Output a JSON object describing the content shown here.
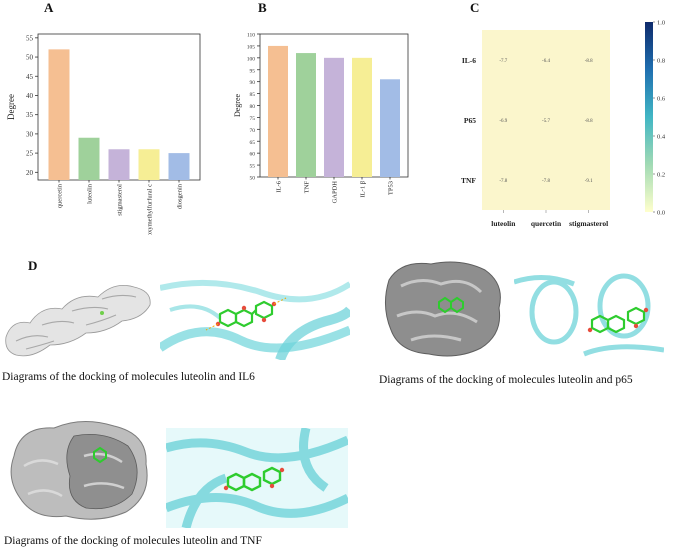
{
  "panels": {
    "a": "A",
    "b": "B",
    "c": "C",
    "d": "D"
  },
  "chart_data": [
    {
      "type": "bar",
      "panel": "A",
      "ylabel": "Degree",
      "categories": [
        "quercetin",
        "luteolin",
        "stigmasterol",
        "5-hydroxymethylfurfural c",
        "diosgenin"
      ],
      "values": [
        52,
        29,
        26,
        26,
        25
      ],
      "ylim": [
        18,
        56
      ],
      "yticks": [
        20,
        25,
        30,
        35,
        40,
        45,
        50,
        55
      ],
      "colors": [
        "#f5bf92",
        "#9fd19b",
        "#c5b3d9",
        "#f6ee95",
        "#a2bce6"
      ]
    },
    {
      "type": "bar",
      "panel": "B",
      "ylabel": "Degree",
      "categories": [
        "IL-6",
        "TNF",
        "GAPDH",
        "IL-1 β",
        "TP53"
      ],
      "values": [
        105,
        102,
        100,
        100,
        91
      ],
      "ylim": [
        50,
        110
      ],
      "yticks": [
        50,
        55,
        60,
        65,
        70,
        75,
        80,
        85,
        90,
        95,
        100,
        105,
        110
      ],
      "colors": [
        "#f5bf92",
        "#9fd19b",
        "#c5b3d9",
        "#f6ee95",
        "#a2bce6"
      ]
    },
    {
      "type": "heatmap",
      "panel": "C",
      "rows": [
        "IL-6",
        "P65",
        "TNF"
      ],
      "columns": [
        "luteolin",
        "quercetin",
        "stigmasterol"
      ],
      "values": [
        [
          -7.7,
          -6.4,
          -8.8
        ],
        [
          -6.9,
          -5.7,
          -8.8
        ],
        [
          -7.8,
          -7.8,
          -9.1
        ]
      ],
      "cell_color": "#fbf6cc",
      "colorbar_ticks": [
        "1.0",
        "0.8",
        "0.6",
        "0.4",
        "0.2",
        "0.0"
      ],
      "colorbar_colors": [
        "#0e2a6b",
        "#1f6fb0",
        "#41b6c4",
        "#a1dab4",
        "#ffffcc"
      ]
    }
  ],
  "docking": {
    "il6_caption": "Diagrams of the docking of molecules luteolin and IL6",
    "p65_caption": "Diagrams of the docking of molecules luteolin and p65",
    "tnf_caption": "Diagrams of the docking of molecules luteolin and TNF"
  }
}
